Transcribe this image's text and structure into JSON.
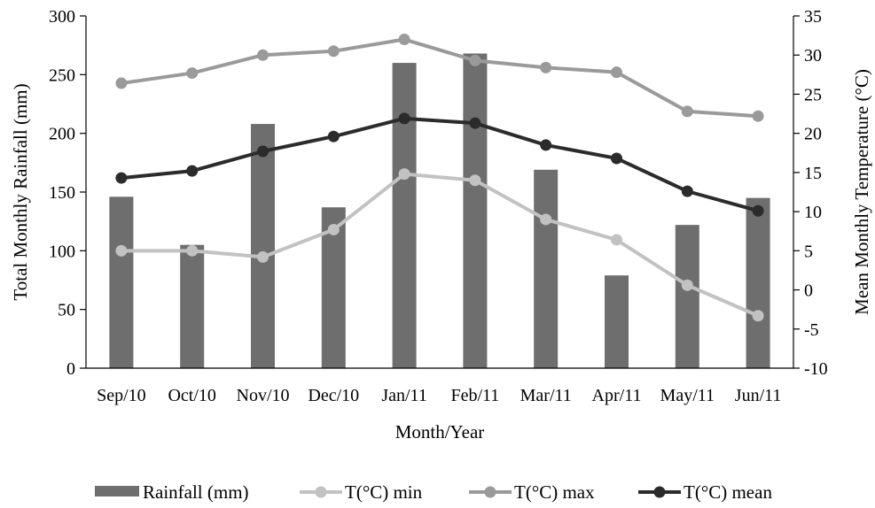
{
  "chart_data": {
    "type": "bar",
    "xlabel": "Month/Year",
    "ylabel": "Total Monthly Rainfall (mm)",
    "y2label": "Mean Monthly Temperature (°C)",
    "categories": [
      "Sep/10",
      "Oct/10",
      "Nov/10",
      "Dec/10",
      "Jan/11",
      "Feb/11",
      "Mar/11",
      "Apr/11",
      "May/11",
      "Jun/11"
    ],
    "ylim": [
      0,
      300
    ],
    "yticks": [
      0,
      50,
      100,
      150,
      200,
      250,
      300
    ],
    "y2lim": [
      -10,
      35
    ],
    "y2ticks": [
      -10,
      -5,
      0,
      5,
      10,
      15,
      20,
      25,
      30,
      35
    ],
    "grid": false,
    "legend_position": "bottom",
    "bar_series": {
      "name": "Rainfall (mm)",
      "axis": "left",
      "color": "#6e6e6e",
      "values": [
        146,
        105,
        208,
        137,
        260,
        268,
        169,
        79,
        122,
        145
      ]
    },
    "line_series": [
      {
        "name": "T(°C) min",
        "axis": "right",
        "color": "#c2c2c2",
        "values": [
          5.0,
          5.0,
          4.2,
          7.7,
          14.8,
          14.0,
          9.0,
          6.4,
          0.6,
          -3.3
        ]
      },
      {
        "name": "T(°C) max",
        "axis": "right",
        "color": "#9a9a9a",
        "values": [
          26.4,
          27.7,
          30.0,
          30.5,
          32.0,
          29.3,
          28.4,
          27.8,
          22.8,
          22.2
        ]
      },
      {
        "name": "T(°C) mean",
        "axis": "right",
        "color": "#2b2b2b",
        "values": [
          14.3,
          15.2,
          17.7,
          19.6,
          21.9,
          21.3,
          18.5,
          16.8,
          12.6,
          10.1
        ]
      }
    ]
  }
}
